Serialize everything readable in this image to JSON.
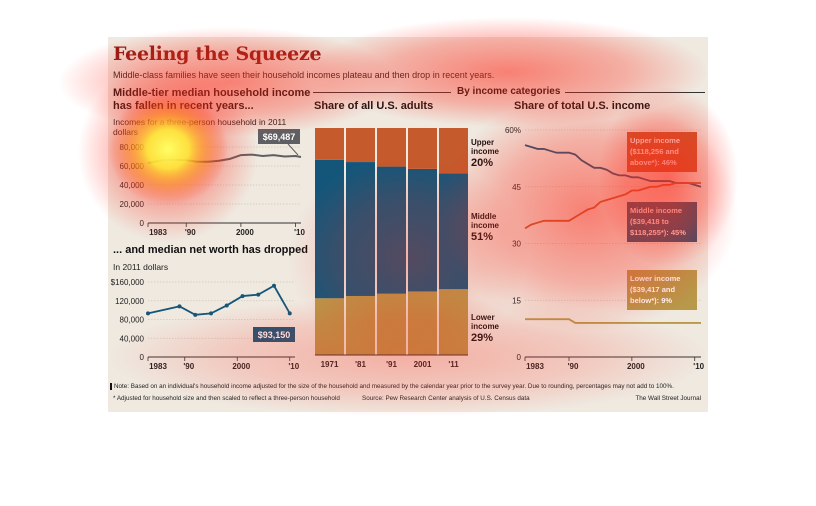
{
  "headline": "Feeling the Squeeze",
  "subhead": "Middle-class families have seen their household incomes plateau and then drop in recent years.",
  "section_left_title_1": "Middle-tier median household income",
  "section_left_title_2": "has fallen in recent years...",
  "section_left_note_1": "Incomes for a three-person household in 2011",
  "section_left_note_2": "dollars",
  "section_left2_title": "... and median net worth has dropped",
  "section_left2_note": "In 2011 dollars",
  "category_header": "By income categories",
  "bars_title": "Share of all U.S. adults",
  "right_title": "Share of total U.S. income",
  "footer": {
    "note": "Note: Based on an individual's household income adjusted for the size of the household and measured by the calendar year prior to the survey year. Due to rounding, percentages may not add to 100%.",
    "adjust": "* Adjusted for household size and then scaled to reflect a three-person household",
    "source": "Source: Pew Research Center analysis of U.S. Census data",
    "credit": "The Wall Street Journal"
  },
  "colors": {
    "upper": "#c55a2c",
    "middle": "#14567a",
    "lower": "#b8984a",
    "line": "#5f5f63",
    "headline": "#8b1c14"
  },
  "chart_data": [
    {
      "type": "line",
      "title": "Middle-tier median household income has fallen in recent years...",
      "subtitle": "Incomes for a three-person household in 2011 dollars",
      "x_ticks": [
        "1983",
        "'90",
        "2000",
        "'10"
      ],
      "y_ticks": [
        "0",
        "20,000",
        "40,000",
        "60,000",
        "80,000"
      ],
      "ylim": [
        0,
        80000
      ],
      "x": [
        1983,
        1985,
        1987,
        1990,
        1992,
        1994,
        1996,
        1998,
        2000,
        2002,
        2004,
        2006,
        2008,
        2010,
        2011
      ],
      "values": [
        63000,
        65500,
        66500,
        66000,
        64500,
        64500,
        65500,
        67500,
        71500,
        72000,
        70500,
        71500,
        70000,
        70500,
        69487
      ],
      "callout": "$69,487"
    },
    {
      "type": "line",
      "title": "... and median net worth has dropped",
      "subtitle": "In 2011 dollars",
      "x_ticks": [
        "1983",
        "'90",
        "2000",
        "'10"
      ],
      "y_ticks": [
        "0",
        "40,000",
        "80,000",
        "120,000",
        "$160,000"
      ],
      "ylim": [
        0,
        160000
      ],
      "x": [
        1983,
        1989,
        1992,
        1995,
        1998,
        2001,
        2004,
        2007,
        2010
      ],
      "values": [
        93000,
        108000,
        90000,
        93000,
        110000,
        130000,
        133000,
        152000,
        93150
      ],
      "callout": "$93,150"
    },
    {
      "type": "bar",
      "stacked": true,
      "title": "Share of all U.S. adults",
      "categories": [
        "1971",
        "'81",
        "'91",
        "2001",
        "'11"
      ],
      "series": [
        {
          "name": "Lower income",
          "values": [
            25,
            26,
            27,
            28,
            29
          ]
        },
        {
          "name": "Middle income",
          "values": [
            61,
            59,
            56,
            54,
            51
          ]
        },
        {
          "name": "Upper income",
          "values": [
            14,
            15,
            17,
            18,
            20
          ]
        }
      ],
      "labels": [
        {
          "l1": "Upper",
          "l2": "income",
          "pct": "20%"
        },
        {
          "l1": "Middle",
          "l2": "income",
          "pct": "51%"
        },
        {
          "l1": "Lower",
          "l2": "income",
          "pct": "29%"
        }
      ]
    },
    {
      "type": "line",
      "title": "Share of total U.S. income",
      "x_ticks": [
        "1983",
        "'90",
        "2000",
        "'10"
      ],
      "y_ticks": [
        "0",
        "15",
        "30",
        "45",
        "60%"
      ],
      "ylim": [
        0,
        60
      ],
      "series": [
        {
          "name": "Middle income",
          "x": [
            1983,
            1984,
            1985,
            1986,
            1987,
            1988,
            1989,
            1990,
            1991,
            1992,
            1993,
            1994,
            1995,
            1996,
            1997,
            1998,
            1999,
            2000,
            2001,
            2002,
            2003,
            2004,
            2005,
            2006,
            2007,
            2008,
            2009,
            2010,
            2011
          ],
          "values": [
            56,
            55.5,
            55,
            55,
            54.5,
            54,
            54,
            54,
            53.5,
            52,
            51,
            50,
            50,
            49.5,
            48.5,
            48,
            48,
            47.5,
            47.5,
            47,
            46.5,
            46.5,
            46.5,
            46.5,
            46,
            46,
            46,
            45.5,
            45
          ]
        },
        {
          "name": "Upper income",
          "x": [
            1983,
            1984,
            1985,
            1986,
            1987,
            1988,
            1989,
            1990,
            1991,
            1992,
            1993,
            1994,
            1995,
            1996,
            1997,
            1998,
            1999,
            2000,
            2001,
            2002,
            2003,
            2004,
            2005,
            2006,
            2007,
            2008,
            2009,
            2010,
            2011
          ],
          "values": [
            34,
            35,
            35.5,
            36,
            36,
            36,
            36,
            36,
            37,
            38,
            39,
            39.5,
            41,
            41.5,
            42,
            42.5,
            43,
            44,
            44,
            44.5,
            45,
            45,
            45.5,
            45.5,
            46,
            46,
            46,
            46,
            46
          ]
        },
        {
          "name": "Lower income",
          "x": [
            1983,
            1986,
            1990,
            1991,
            1995,
            2000,
            2005,
            2010,
            2011
          ],
          "values": [
            10,
            10,
            10,
            9,
            9,
            9,
            9,
            9,
            9
          ]
        }
      ],
      "callouts": [
        {
          "l1": "Upper income",
          "l2": "($118,256 and",
          "l3": "above*): 46%"
        },
        {
          "l1": "Middle income",
          "l2": "($39,418 to",
          "l3": "$118,255*): 45%"
        },
        {
          "l1": "Lower income",
          "l2": "($39,417 and",
          "l3": "below*): 9%"
        }
      ]
    }
  ]
}
